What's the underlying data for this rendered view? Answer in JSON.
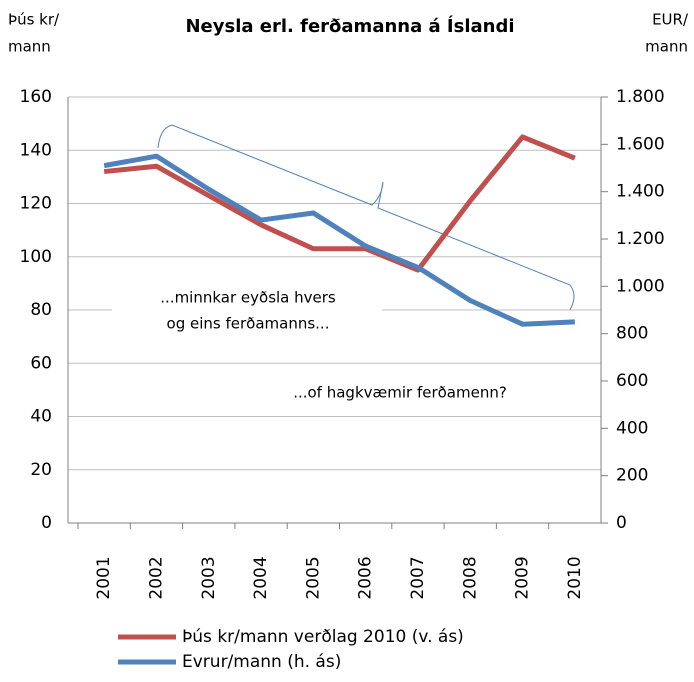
{
  "chart_data": {
    "type": "line",
    "title": "Neysla erl. ferðamanna á Íslandi",
    "y_label": [
      "Þús kr/",
      "mann"
    ],
    "y2_label": [
      "EUR/",
      "mann"
    ],
    "categories": [
      "2001",
      "2002",
      "2003",
      "2004",
      "2005",
      "2006",
      "2007",
      "2008",
      "2009",
      "2010"
    ],
    "series": [
      {
        "name": "Þús kr/mann verðlag 2010 (v. ás)",
        "color": "#c0504d",
        "values": [
          132,
          134,
          123,
          112,
          103,
          103,
          95,
          121,
          145,
          137
        ]
      },
      {
        "name": "Evrur/mann (h. ás)",
        "color": "#4f81bd",
        "axis": "y2",
        "values": [
          1510,
          1550,
          1410,
          1280,
          1310,
          1170,
          1080,
          940,
          840,
          850
        ]
      }
    ],
    "ylim": [
      0,
      160
    ],
    "yticks": [
      0,
      20,
      40,
      60,
      80,
      100,
      120,
      140,
      160
    ],
    "y2lim": [
      0,
      1800
    ],
    "y2ticks": [
      0,
      {
        "value": 200,
        "label": "200"
      },
      400,
      600,
      800,
      {
        "value": 1000,
        "label": "1.000"
      },
      {
        "value": 1200,
        "label": "1.200"
      },
      {
        "value": 1400,
        "label": "1.400"
      },
      {
        "value": 1600,
        "label": "1.600"
      },
      {
        "value": 1800,
        "label": "1.800"
      }
    ],
    "annotations": [
      "...minnkar eyðsla hvers",
      "og eins ferðamanns...",
      "...of hagkvæmir ferðamenn?"
    ],
    "grid": true
  }
}
